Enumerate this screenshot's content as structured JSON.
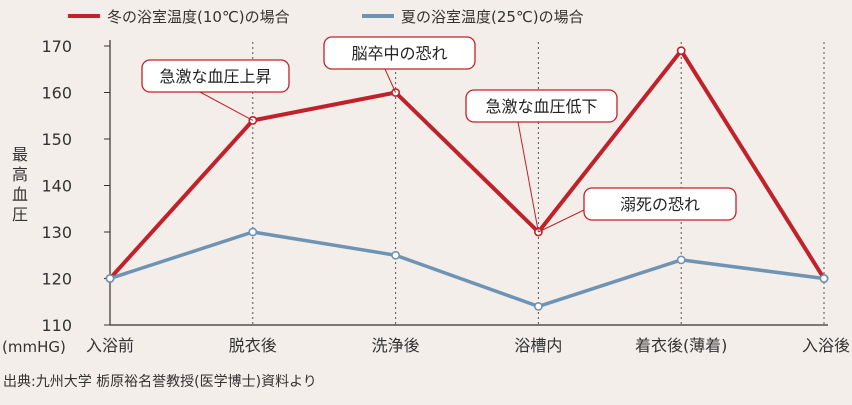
{
  "chart_data": {
    "type": "line",
    "categories": [
      "入浴前",
      "脱衣後",
      "洗浄後",
      "浴槽内",
      "着衣後(薄着)",
      "入浴後"
    ],
    "series": [
      {
        "name": "冬の浴室温度(10℃)の場合",
        "color": "#c0222b",
        "values": [
          120,
          154,
          160,
          130,
          169,
          120
        ]
      },
      {
        "name": "夏の浴室温度(25℃)の場合",
        "color": "#6f94b3",
        "values": [
          120,
          130,
          125,
          114,
          124,
          120
        ]
      }
    ],
    "ylim": [
      110,
      170
    ],
    "yticks": [
      110,
      120,
      130,
      140,
      150,
      160,
      170
    ],
    "ylabel": "最高血圧",
    "yunit": "(mmHG)",
    "grid": "dotted vertical lines at each category",
    "legend": "top-left",
    "annotations": [
      {
        "text": "急激な血圧上昇",
        "category_index": 1,
        "series_index": 0
      },
      {
        "text": "脳卒中の恐れ",
        "category_index": 2,
        "series_index": 0
      },
      {
        "text": "急激な血圧低下",
        "category_index": 3,
        "series_index": 0
      },
      {
        "text": "溺死の恐れ",
        "category_index": 3,
        "series_index": 0
      }
    ]
  },
  "source_note": "出典:九州大学 栃原裕名誉教授(医学博士)資料より",
  "colors": {
    "background": "#f4eeea",
    "axis": "#333333",
    "grid": "#555555",
    "callout_border": "#c0222b"
  }
}
